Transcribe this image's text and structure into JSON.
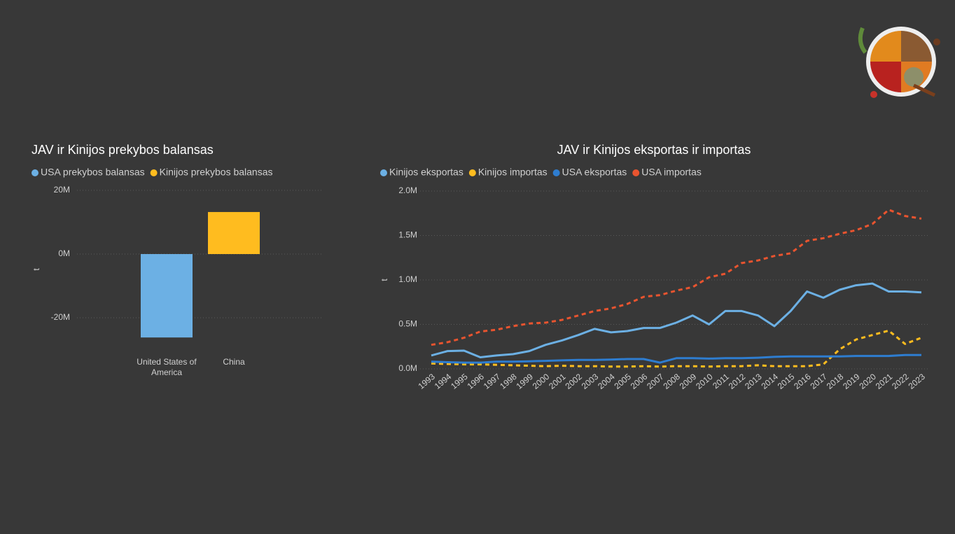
{
  "chart_data": [
    {
      "type": "bar",
      "title": "JAV ir Kinijos prekybos balansas",
      "y_label": "t",
      "categories": [
        "United States of America",
        "China"
      ],
      "series": [
        {
          "name": "USA prekybos balansas",
          "color": "#6cb0e4",
          "values": [
            -26200000,
            null
          ]
        },
        {
          "name": "Kinijos prekybos balansas",
          "color": "#ffbc1f",
          "values": [
            null,
            13200000
          ]
        }
      ],
      "ylim": [
        -28000000,
        20000000
      ],
      "yticks": [
        {
          "value": -20000000,
          "label": "-20M"
        },
        {
          "value": 0,
          "label": "0M"
        },
        {
          "value": 20000000,
          "label": "20M"
        }
      ],
      "grid": true,
      "legend": "top-left"
    },
    {
      "type": "line",
      "title": "JAV ir Kinijos eksportas ir importas",
      "y_label": "t",
      "x": [
        1993,
        1994,
        1995,
        1996,
        1997,
        1998,
        1999,
        2000,
        2001,
        2002,
        2003,
        2004,
        2005,
        2006,
        2007,
        2008,
        2009,
        2010,
        2011,
        2012,
        2013,
        2014,
        2015,
        2016,
        2017,
        2018,
        2019,
        2020,
        2021,
        2022,
        2023
      ],
      "series": [
        {
          "name": "Kinijos eksportas",
          "color": "#6cb0e4",
          "line_style": "solid",
          "values": [
            150000,
            200000,
            205000,
            130000,
            150000,
            165000,
            200000,
            270000,
            320000,
            380000,
            450000,
            410000,
            425000,
            460000,
            460000,
            520000,
            600000,
            500000,
            650000,
            650000,
            600000,
            480000,
            650000,
            870000,
            800000,
            890000,
            940000,
            960000,
            870000,
            870000,
            860000
          ]
        },
        {
          "name": "Kinijos importas",
          "color": "#ffbc1f",
          "line_style": "dashed",
          "values": [
            60000,
            55000,
            50000,
            50000,
            45000,
            40000,
            35000,
            30000,
            35000,
            30000,
            30000,
            25000,
            25000,
            30000,
            25000,
            30000,
            30000,
            25000,
            30000,
            30000,
            40000,
            30000,
            30000,
            30000,
            50000,
            220000,
            330000,
            380000,
            430000,
            280000,
            350000
          ]
        },
        {
          "name": "USA eksportas",
          "color": "#2e7dd0",
          "line_style": "solid",
          "values": [
            80000,
            75000,
            70000,
            70000,
            80000,
            80000,
            85000,
            90000,
            95000,
            100000,
            100000,
            105000,
            110000,
            110000,
            70000,
            120000,
            120000,
            115000,
            120000,
            120000,
            125000,
            135000,
            140000,
            140000,
            140000,
            140000,
            145000,
            145000,
            145000,
            155000,
            155000
          ]
        },
        {
          "name": "USA importas",
          "color": "#e9542f",
          "line_style": "dashed",
          "values": [
            270000,
            300000,
            350000,
            420000,
            440000,
            480000,
            510000,
            520000,
            550000,
            600000,
            650000,
            680000,
            730000,
            810000,
            830000,
            880000,
            920000,
            1030000,
            1070000,
            1190000,
            1220000,
            1270000,
            1300000,
            1440000,
            1470000,
            1520000,
            1560000,
            1630000,
            1790000,
            1720000,
            1690000
          ]
        }
      ],
      "xlim": [
        1993,
        2023
      ],
      "ylim": [
        0,
        2000000
      ],
      "yticks": [
        {
          "value": 0,
          "label": "0.0M"
        },
        {
          "value": 500000,
          "label": "0.5M"
        },
        {
          "value": 1000000,
          "label": "1.0M"
        },
        {
          "value": 1500000,
          "label": "1.5M"
        },
        {
          "value": 2000000,
          "label": "2.0M"
        }
      ],
      "grid": true,
      "legend": "top-left"
    }
  ]
}
